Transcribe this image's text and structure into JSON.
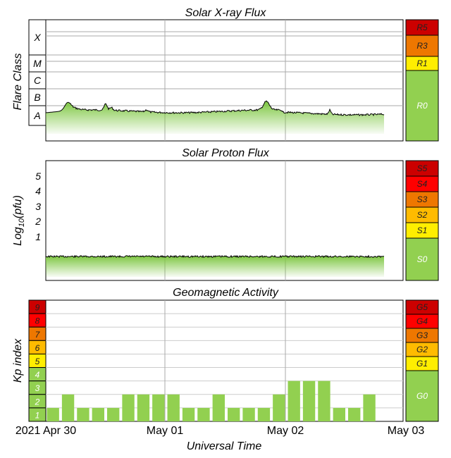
{
  "xray": {
    "title": "Solar X-ray Flux",
    "ylabel": "Flare Class",
    "classes": [
      "X",
      "M",
      "C",
      "B",
      "A"
    ],
    "scale": [
      {
        "label": "R5",
        "color": "#cc0000"
      },
      {
        "label": "R3",
        "color": "#ee7700"
      },
      {
        "label": "R1",
        "color": "#ffee00"
      },
      {
        "label": "R0",
        "color": "#92d050"
      }
    ]
  },
  "proton": {
    "title": "Solar Proton Flux",
    "ylabel_main": "Log",
    "ylabel_sub": "10",
    "ylabel_end": "(pfu)",
    "ticks": [
      "5",
      "4",
      "3",
      "2",
      "1"
    ],
    "scale": [
      {
        "label": "S5",
        "color": "#cc0000"
      },
      {
        "label": "S4",
        "color": "#ff0000"
      },
      {
        "label": "S3",
        "color": "#ee7700"
      },
      {
        "label": "S2",
        "color": "#ffbb00"
      },
      {
        "label": "S1",
        "color": "#ffee00"
      },
      {
        "label": "S0",
        "color": "#92d050"
      }
    ]
  },
  "geomag": {
    "title": "Geomagnetic Activity",
    "ylabel": "Kp index",
    "kp_levels": [
      {
        "label": "9",
        "color": "#cc0000"
      },
      {
        "label": "8",
        "color": "#ff0000"
      },
      {
        "label": "7",
        "color": "#ee7700"
      },
      {
        "label": "6",
        "color": "#ffbb00"
      },
      {
        "label": "5",
        "color": "#ffee00"
      },
      {
        "label": "4",
        "color": "#92d050"
      },
      {
        "label": "3",
        "color": "#92d050"
      },
      {
        "label": "2",
        "color": "#92d050"
      },
      {
        "label": "1",
        "color": "#92d050"
      }
    ],
    "scale": [
      {
        "label": "G5",
        "color": "#cc0000"
      },
      {
        "label": "G4",
        "color": "#ff0000"
      },
      {
        "label": "G3",
        "color": "#ee7700"
      },
      {
        "label": "G2",
        "color": "#ffbb00"
      },
      {
        "label": "G1",
        "color": "#ffee00"
      },
      {
        "label": "G0",
        "color": "#92d050"
      }
    ]
  },
  "xaxis": {
    "label": "Universal Time",
    "ticks": [
      "2021 Apr 30",
      "May 01",
      "May 02",
      "May 03"
    ]
  },
  "chart_data": [
    {
      "type": "area",
      "title": "Solar X-ray Flux",
      "ylabel": "Flare Class",
      "y_categories": [
        "A",
        "B",
        "C",
        "M",
        "X"
      ],
      "x": [
        "2021 Apr 30",
        "May 01",
        "May 02",
        "May 03"
      ],
      "description_level": "approx. high A / low B class throughout, with small peaks near Apr 30 and late May 01"
    },
    {
      "type": "area",
      "title": "Solar Proton Flux",
      "ylabel": "Log10(pfu)",
      "ylim": [
        -0.8,
        6
      ],
      "level": -0.3
    },
    {
      "type": "bar",
      "title": "Geomagnetic Activity",
      "ylabel": "Kp index",
      "ylim": [
        0,
        9
      ],
      "interval_hours": 3,
      "start": "2021 Apr 30 00:00",
      "values": [
        1,
        2,
        1,
        1,
        1,
        2,
        2,
        2,
        2,
        1,
        1,
        2,
        1,
        1,
        1,
        2,
        3,
        3,
        3,
        1,
        1,
        2
      ]
    }
  ]
}
